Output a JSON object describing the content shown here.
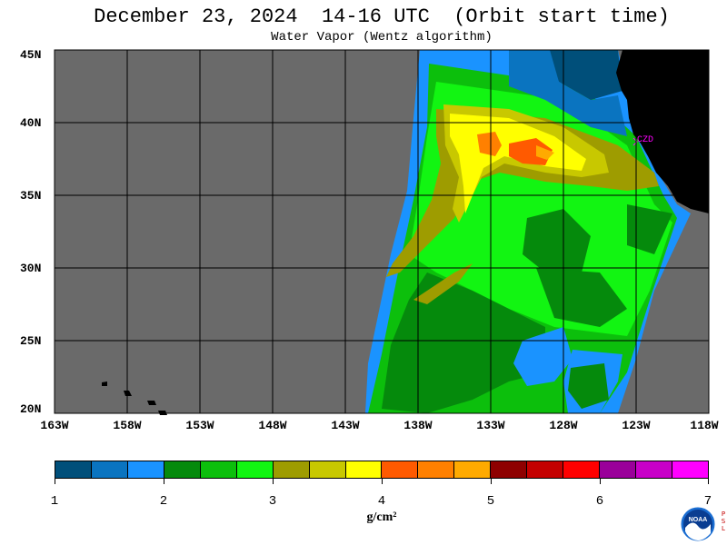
{
  "title": "December 23, 2024  14-16 UTC  (Orbit start time)",
  "subtitle": "Water Vapor (Wentz algorithm)",
  "map": {
    "land_color": "#000000",
    "no_data_color": "#6a6a6a",
    "grid_color": "#000000",
    "station_label": "CZD",
    "station_color": "#ff00ff"
  },
  "lat_labels": [
    "45N",
    "40N",
    "35N",
    "30N",
    "25N",
    "20N"
  ],
  "lon_labels": [
    "163W",
    "158W",
    "153W",
    "148W",
    "143W",
    "138W",
    "133W",
    "128W",
    "123W",
    "118W"
  ],
  "colorbar": {
    "colors": [
      "#004f7a",
      "#0a74c0",
      "#1a93ff",
      "#058a0c",
      "#0cbf0c",
      "#12f512",
      "#9e9c00",
      "#c8c800",
      "#ffff00",
      "#ff5a00",
      "#ff8000",
      "#ffaa00",
      "#8e0000",
      "#c40000",
      "#ff0000",
      "#9a009a",
      "#c800c8",
      "#ff00ff"
    ],
    "tick_labels": [
      "1",
      "2",
      "3",
      "4",
      "5",
      "6",
      "7"
    ],
    "unit": "g/cm²"
  },
  "logo": {
    "text": "NOAA",
    "side_text": "PSL"
  }
}
